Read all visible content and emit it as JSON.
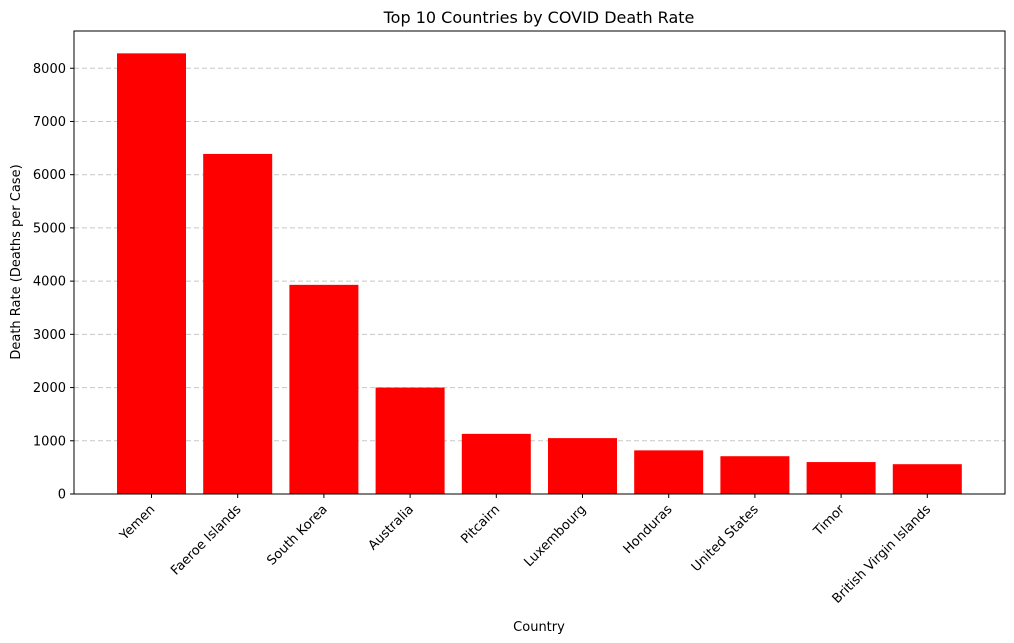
{
  "chart_data": {
    "type": "bar",
    "title": "Top 10 Countries by COVID Death Rate",
    "xlabel": "Country",
    "ylabel": "Death Rate (Deaths per Case)",
    "categories": [
      "Yemen",
      "Faeroe Islands",
      "South Korea",
      "Australia",
      "Pitcairn",
      "Luxembourg",
      "Honduras",
      "United States",
      "Timor",
      "British Virgin Islands"
    ],
    "values": [
      8280,
      6390,
      3930,
      2000,
      1130,
      1050,
      820,
      710,
      600,
      560
    ],
    "ylim": [
      0,
      8700
    ],
    "yticks": [
      0,
      1000,
      2000,
      3000,
      4000,
      5000,
      6000,
      7000,
      8000
    ],
    "bar_color": "#ff0000",
    "grid": "y-axis dashed"
  }
}
